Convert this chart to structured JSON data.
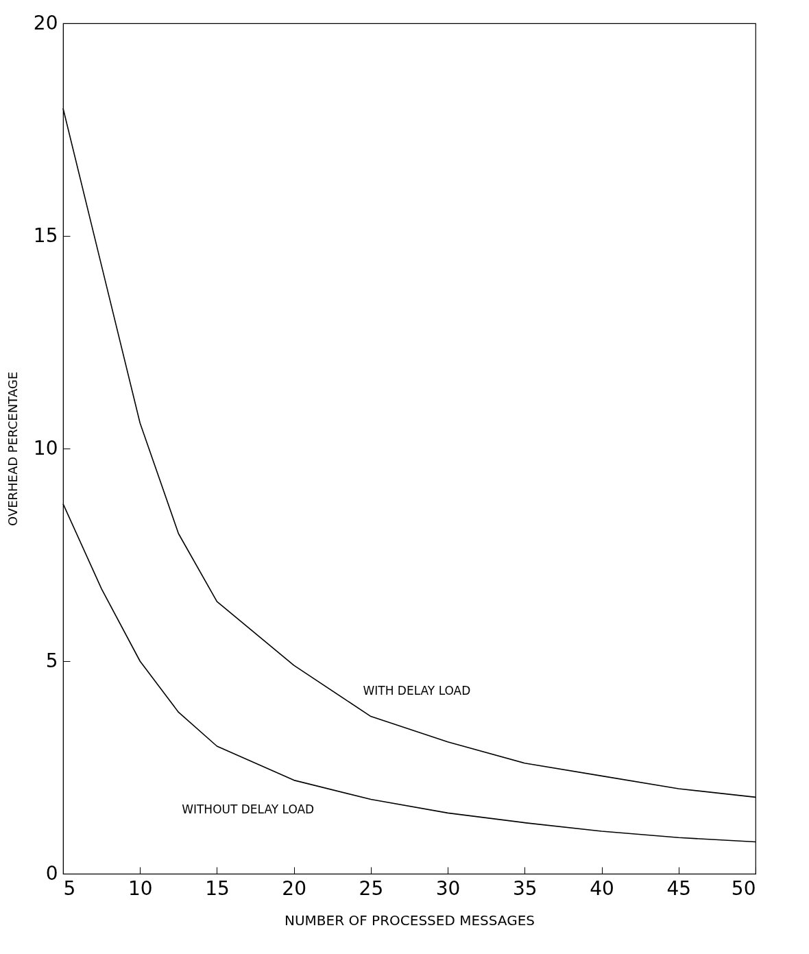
{
  "chart_data": {
    "type": "line",
    "xlabel": "NUMBER OF PROCESSED MESSAGES",
    "ylabel": "OVERHEAD PERCENTAGE",
    "xlim": [
      5,
      50
    ],
    "ylim": [
      0,
      20
    ],
    "xticks": [
      5,
      10,
      15,
      20,
      25,
      30,
      35,
      40,
      45,
      50
    ],
    "yticks": [
      0,
      5,
      10,
      15,
      20
    ],
    "grid": false,
    "marker": "none",
    "line_style": "solid",
    "x": [
      5,
      7.5,
      10,
      12.5,
      15,
      20,
      25,
      30,
      35,
      40,
      45,
      50
    ],
    "series": [
      {
        "name": "WITH DELAY LOAD",
        "color": "#000000",
        "values": [
          18.0,
          14.3,
          10.6,
          8.0,
          6.4,
          4.9,
          3.7,
          3.1,
          2.6,
          2.3,
          2.0,
          1.8
        ]
      },
      {
        "name": "WITHOUT DELAY LOAD",
        "color": "#000000",
        "values": [
          8.7,
          6.7,
          5.0,
          3.8,
          3.0,
          2.2,
          1.75,
          1.43,
          1.2,
          1.0,
          0.85,
          0.75
        ]
      }
    ]
  }
}
